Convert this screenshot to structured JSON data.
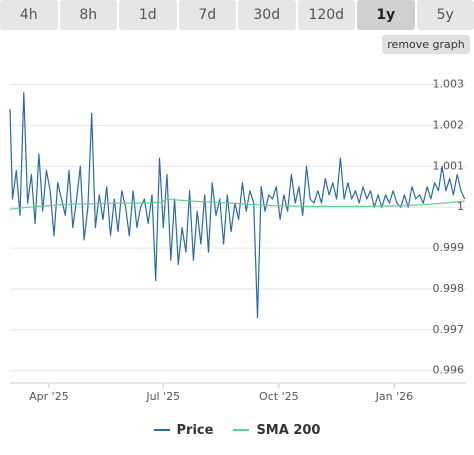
{
  "range_tabs": [
    {
      "label": "4h",
      "active": false
    },
    {
      "label": "8h",
      "active": false
    },
    {
      "label": "1d",
      "active": false
    },
    {
      "label": "7d",
      "active": false
    },
    {
      "label": "30d",
      "active": false
    },
    {
      "label": "120d",
      "active": false
    },
    {
      "label": "1y",
      "active": true
    },
    {
      "label": "5y",
      "active": false
    }
  ],
  "remove_graph_label": "remove graph",
  "colors": {
    "price": "#2a6aa8",
    "sma": "#5ed18f",
    "grid": "#e6e6e6",
    "tab_bg": "#e6e6e6",
    "tab_active_bg": "#cfcfcf"
  },
  "chart_data": {
    "type": "line",
    "title": "",
    "xlabel": "",
    "ylabel": "",
    "ylim": [
      0.9957,
      1.0036
    ],
    "y_ticks": [
      "0.996",
      "0.997",
      "0.998",
      "0.999",
      "1",
      "1.001",
      "1.002",
      "1.003"
    ],
    "x_ticks": [
      {
        "label": "Apr '25",
        "date": "2025-04-01"
      },
      {
        "label": "Jul '25",
        "date": "2025-07-01"
      },
      {
        "label": "Oct '25",
        "date": "2025-10-01"
      },
      {
        "label": "Jan '26",
        "date": "2026-01-01"
      }
    ],
    "x_range": [
      "2025-03-01",
      "2026-02-27"
    ],
    "grid": true,
    "legend_position": "bottom",
    "series": [
      {
        "name": "Price",
        "color": "#2a6aa8",
        "x": [
          "2025-03-01",
          "2025-03-03",
          "2025-03-06",
          "2025-03-09",
          "2025-03-12",
          "2025-03-15",
          "2025-03-18",
          "2025-03-21",
          "2025-03-24",
          "2025-03-27",
          "2025-03-30",
          "2025-04-02",
          "2025-04-05",
          "2025-04-08",
          "2025-04-11",
          "2025-04-14",
          "2025-04-17",
          "2025-04-20",
          "2025-04-23",
          "2025-04-26",
          "2025-04-29",
          "2025-05-02",
          "2025-05-05",
          "2025-05-08",
          "2025-05-11",
          "2025-05-14",
          "2025-05-17",
          "2025-05-20",
          "2025-05-23",
          "2025-05-26",
          "2025-05-29",
          "2025-06-01",
          "2025-06-04",
          "2025-06-07",
          "2025-06-10",
          "2025-06-13",
          "2025-06-16",
          "2025-06-19",
          "2025-06-22",
          "2025-06-25",
          "2025-06-28",
          "2025-07-01",
          "2025-07-04",
          "2025-07-07",
          "2025-07-10",
          "2025-07-13",
          "2025-07-16",
          "2025-07-19",
          "2025-07-22",
          "2025-07-25",
          "2025-07-28",
          "2025-07-31",
          "2025-08-03",
          "2025-08-06",
          "2025-08-09",
          "2025-08-12",
          "2025-08-15",
          "2025-08-18",
          "2025-08-21",
          "2025-08-24",
          "2025-08-27",
          "2025-08-30",
          "2025-09-02",
          "2025-09-05",
          "2025-09-08",
          "2025-09-11",
          "2025-09-14",
          "2025-09-17",
          "2025-09-20",
          "2025-09-23",
          "2025-09-26",
          "2025-09-29",
          "2025-10-02",
          "2025-10-05",
          "2025-10-08",
          "2025-10-11",
          "2025-10-14",
          "2025-10-17",
          "2025-10-20",
          "2025-10-23",
          "2025-10-26",
          "2025-10-29",
          "2025-11-01",
          "2025-11-04",
          "2025-11-07",
          "2025-11-10",
          "2025-11-13",
          "2025-11-16",
          "2025-11-19",
          "2025-11-22",
          "2025-11-25",
          "2025-11-28",
          "2025-12-01",
          "2025-12-04",
          "2025-12-07",
          "2025-12-10",
          "2025-12-13",
          "2025-12-16",
          "2025-12-19",
          "2025-12-22",
          "2025-12-25",
          "2025-12-28",
          "2025-12-31",
          "2026-01-03",
          "2026-01-06",
          "2026-01-09",
          "2026-01-12",
          "2026-01-15",
          "2026-01-18",
          "2026-01-21",
          "2026-01-24",
          "2026-01-27",
          "2026-01-30",
          "2026-02-02",
          "2026-02-05",
          "2026-02-08",
          "2026-02-11",
          "2026-02-14",
          "2026-02-17",
          "2026-02-20",
          "2026-02-23",
          "2026-02-26"
        ],
        "values": [
          1.0024,
          1.0002,
          1.0009,
          0.9998,
          1.0028,
          1.0001,
          1.0008,
          0.9996,
          1.0013,
          0.9999,
          1.0009,
          1.0004,
          0.9993,
          1.0006,
          1.0002,
          0.9998,
          1.0009,
          0.9995,
          1.0002,
          1.001,
          0.9992,
          1.0,
          1.0023,
          0.9995,
          1.0003,
          0.9997,
          1.0005,
          0.9993,
          1.0002,
          0.9994,
          1.0004,
          1.0,
          0.9993,
          1.0004,
          0.9995,
          1.0,
          1.0002,
          0.9996,
          1.0003,
          0.9982,
          1.0012,
          0.9995,
          1.0008,
          0.9987,
          1.0002,
          0.9986,
          0.9995,
          0.9989,
          1.0004,
          0.9987,
          0.9999,
          0.9991,
          1.0003,
          0.9989,
          1.0006,
          0.9998,
          1.0002,
          0.9991,
          1.0003,
          0.9994,
          1.0001,
          0.9997,
          1.0006,
          0.9999,
          1.0004,
          1.0001,
          0.9973,
          1.0005,
          0.9999,
          1.0003,
          1.0002,
          1.0005,
          0.9997,
          1.0003,
          0.9999,
          1.0008,
          1.0001,
          1.0005,
          0.9998,
          1.001,
          1.0002,
          1.0001,
          1.0004,
          1.0001,
          1.0007,
          1.0003,
          1.0006,
          1.0002,
          1.0012,
          1.0002,
          1.0006,
          1.0002,
          1.0004,
          1.0001,
          1.0005,
          1.0002,
          1.0004,
          1.0,
          1.0003,
          1.0,
          1.0003,
          1.0001,
          1.0004,
          1.0001,
          1.0,
          1.0003,
          1.0,
          1.0005,
          1.0002,
          1.0003,
          1.0001,
          1.0005,
          1.0002,
          1.0006,
          1.0004,
          1.001,
          1.0004,
          1.0007,
          1.0003,
          1.0008,
          1.0004,
          1.0002
        ]
      },
      {
        "name": "SMA 200",
        "color": "#5ed18f",
        "x": [
          "2025-03-01",
          "2025-03-16",
          "2025-03-31",
          "2025-04-15",
          "2025-04-30",
          "2025-05-15",
          "2025-05-30",
          "2025-06-14",
          "2025-06-29",
          "2025-07-04",
          "2025-07-14",
          "2025-07-29",
          "2025-08-13",
          "2025-08-28",
          "2025-09-12",
          "2025-09-27",
          "2025-10-12",
          "2025-10-27",
          "2025-11-11",
          "2025-11-26",
          "2025-12-11",
          "2025-12-26",
          "2026-01-10",
          "2026-01-25",
          "2026-02-09",
          "2026-02-26"
        ],
        "values": [
          0.99995,
          1.0,
          1.00004,
          1.00007,
          1.00008,
          1.00009,
          1.0001,
          1.0001,
          1.00012,
          1.0002,
          1.00017,
          1.00014,
          1.00012,
          1.00009,
          1.00006,
          1.00004,
          1.00003,
          1.00002,
          1.00002,
          1.00002,
          1.00002,
          1.00003,
          1.00004,
          1.00006,
          1.0001,
          1.00015
        ]
      }
    ]
  }
}
